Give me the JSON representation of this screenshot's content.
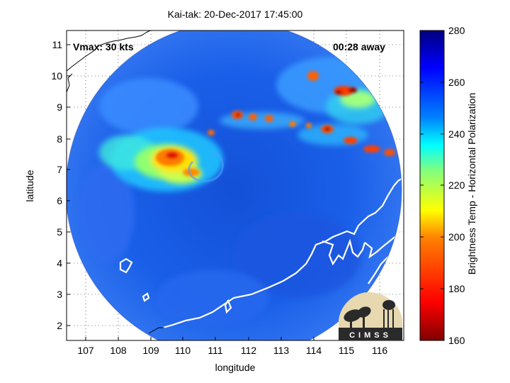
{
  "title": "Kai-tak: 20-Dec-2017 17:45:00",
  "vmax_label": "Vmax: 30 kts",
  "time_label": "00:28 away",
  "colorbar": {
    "label": "Brightness Temp - Horizontal Polarization",
    "ticks": [
      "280",
      "260",
      "240",
      "220",
      "200",
      "180",
      "160"
    ],
    "range": [
      160,
      280
    ],
    "colormap": [
      "#7f0000",
      "#ff0000",
      "#ff8000",
      "#ffff00",
      "#80ff80",
      "#00ffff",
      "#0080ff",
      "#0000ff",
      "#00007f"
    ]
  },
  "map": {
    "xlabel": "longitude",
    "ylabel": "latitude",
    "xticks": [
      "107",
      "108",
      "109",
      "110",
      "111",
      "112",
      "113",
      "114",
      "115",
      "116"
    ],
    "yticks": [
      "11",
      "10",
      "9",
      "8",
      "7",
      "6",
      "5",
      "4",
      "3",
      "2"
    ],
    "xlim": [
      106.5,
      116.6
    ],
    "ylim": [
      1.5,
      11.5
    ],
    "grid": "dotted"
  },
  "logo": {
    "text": "CIMSS"
  }
}
